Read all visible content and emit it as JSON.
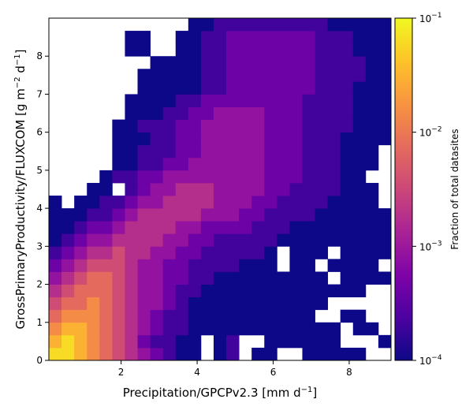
{
  "chart_data": {
    "type": "heatmap",
    "xlabel": "Precipitation/GPCPv2.3 [mm d",
    "xlabel_unit_sup": "−1",
    "xlabel_close": "]",
    "ylabel_main": "GrossPrimaryProductivity/FLUXCOM [g m",
    "ylabel_sup1": "−2",
    "ylabel_mid": " d",
    "ylabel_sup2": "−1",
    "ylabel_close": "]",
    "xlim": [
      0.1,
      9.1
    ],
    "ylim": [
      0,
      9
    ],
    "xticks": [
      "2",
      "4",
      "6",
      "8"
    ],
    "yticks": [
      "0",
      "1",
      "2",
      "3",
      "4",
      "5",
      "6",
      "7",
      "8"
    ],
    "x_bins": 27,
    "y_bins": 27,
    "colormap": "plasma",
    "colorscale": "log",
    "color_range": [
      0.0001,
      0.1
    ],
    "colorbar_label": "Fraction of total datasites",
    "colorbar_ticks": [
      {
        "base": "10",
        "exp": "−1",
        "value": 0.1
      },
      {
        "base": "10",
        "exp": "−2",
        "value": 0.01
      },
      {
        "base": "10",
        "exp": "−3",
        "value": 0.001
      },
      {
        "base": "10",
        "exp": "−4",
        "value": 0.0001
      }
    ],
    "note": "cells: log10 of fraction, rows from y=0 (bottom) upward; null = empty",
    "cells_log10": [
      [
        null,
        null,
        null,
        null,
        null,
        null,
        null,
        null,
        null,
        null,
        null,
        null,
        null,
        null,
        null,
        null,
        null,
        null,
        null,
        null,
        null,
        null,
        null,
        null,
        null,
        null,
        null
      ],
      [
        null,
        null,
        null,
        null,
        null,
        null,
        null,
        null,
        null,
        null,
        null,
        null,
        null,
        null,
        null,
        null,
        null,
        null,
        null,
        null,
        null,
        null,
        null,
        null,
        null,
        null,
        null
      ],
      [
        null,
        null,
        null,
        null,
        null,
        null,
        null,
        null,
        null,
        null,
        null,
        null,
        null,
        null,
        null,
        null,
        null,
        null,
        null,
        null,
        null,
        null,
        null,
        null,
        null,
        null,
        null
      ],
      [
        null,
        null,
        null,
        null,
        null,
        null,
        null,
        null,
        null,
        null,
        null,
        null,
        null,
        null,
        null,
        null,
        null,
        null,
        null,
        null,
        null,
        null,
        null,
        null,
        null,
        null,
        null
      ],
      [
        null,
        null,
        null,
        null,
        null,
        null,
        null,
        null,
        null,
        null,
        null,
        null,
        null,
        null,
        null,
        null,
        null,
        null,
        null,
        null,
        null,
        null,
        null,
        null,
        null,
        null,
        null
      ],
      [
        null,
        null,
        null,
        null,
        null,
        null,
        null,
        null,
        null,
        null,
        null,
        null,
        null,
        null,
        null,
        null,
        null,
        null,
        null,
        null,
        null,
        null,
        null,
        null,
        null,
        null,
        null
      ],
      [
        null,
        null,
        null,
        null,
        null,
        null,
        null,
        null,
        null,
        null,
        null,
        null,
        null,
        null,
        null,
        null,
        null,
        null,
        null,
        null,
        null,
        null,
        null,
        null,
        null,
        null,
        null
      ],
      [
        null,
        null,
        null,
        null,
        null,
        null,
        null,
        null,
        null,
        null,
        null,
        null,
        null,
        null,
        null,
        null,
        null,
        null,
        null,
        null,
        null,
        null,
        null,
        null,
        null,
        null,
        null
      ],
      [
        null,
        null,
        null,
        null,
        null,
        null,
        null,
        null,
        null,
        null,
        null,
        null,
        null,
        null,
        null,
        null,
        null,
        null,
        null,
        null,
        null,
        null,
        null,
        null,
        null,
        null,
        null
      ],
      [
        null,
        null,
        null,
        null,
        null,
        null,
        null,
        null,
        null,
        null,
        null,
        null,
        null,
        null,
        null,
        null,
        null,
        null,
        null,
        null,
        null,
        null,
        null,
        null,
        null,
        null,
        null
      ],
      [
        null,
        null,
        null,
        null,
        null,
        null,
        null,
        null,
        null,
        null,
        null,
        null,
        null,
        null,
        null,
        null,
        null,
        null,
        null,
        null,
        null,
        null,
        null,
        null,
        null,
        null,
        null
      ],
      [
        null,
        null,
        null,
        null,
        null,
        null,
        null,
        null,
        null,
        null,
        null,
        null,
        null,
        null,
        null,
        null,
        null,
        null,
        null,
        null,
        null,
        null,
        null,
        null,
        null,
        null,
        null
      ],
      [
        null,
        null,
        null,
        null,
        null,
        null,
        null,
        null,
        null,
        null,
        null,
        null,
        null,
        null,
        null,
        null,
        null,
        null,
        null,
        null,
        null,
        null,
        null,
        null,
        null,
        null,
        null
      ],
      [
        null,
        null,
        null,
        null,
        null,
        null,
        null,
        null,
        null,
        null,
        null,
        null,
        null,
        null,
        null,
        null,
        null,
        null,
        null,
        null,
        null,
        null,
        null,
        null,
        null,
        null,
        null
      ],
      [
        null,
        null,
        null,
        null,
        null,
        null,
        null,
        null,
        null,
        null,
        null,
        null,
        null,
        null,
        null,
        null,
        null,
        null,
        null,
        null,
        null,
        null,
        null,
        null,
        null,
        null,
        null
      ],
      [
        null,
        null,
        null,
        null,
        null,
        null,
        null,
        null,
        null,
        null,
        null,
        null,
        null,
        null,
        null,
        null,
        null,
        null,
        null,
        null,
        null,
        null,
        null,
        null,
        null,
        null,
        null
      ],
      [
        null,
        null,
        null,
        null,
        null,
        null,
        null,
        null,
        null,
        null,
        null,
        null,
        null,
        null,
        null,
        null,
        null,
        null,
        null,
        null,
        null,
        null,
        null,
        null,
        null,
        null,
        null
      ],
      [
        null,
        null,
        null,
        null,
        null,
        null,
        null,
        null,
        null,
        null,
        null,
        null,
        null,
        null,
        null,
        null,
        null,
        null,
        null,
        null,
        null,
        null,
        null,
        null,
        null,
        null,
        null
      ],
      [
        null,
        null,
        null,
        null,
        null,
        null,
        null,
        null,
        null,
        null,
        null,
        null,
        null,
        null,
        null,
        null,
        null,
        null,
        null,
        null,
        null,
        null,
        null,
        null,
        null,
        null,
        null
      ],
      [
        null,
        null,
        null,
        null,
        null,
        null,
        null,
        null,
        null,
        null,
        null,
        null,
        null,
        null,
        null,
        null,
        null,
        null,
        null,
        null,
        null,
        null,
        null,
        null,
        null,
        null,
        null
      ],
      [
        null,
        null,
        null,
        null,
        null,
        null,
        null,
        null,
        null,
        null,
        null,
        null,
        null,
        null,
        null,
        null,
        null,
        null,
        null,
        null,
        null,
        null,
        null,
        null,
        null,
        null,
        null
      ],
      [
        null,
        null,
        null,
        null,
        null,
        null,
        null,
        null,
        null,
        null,
        null,
        null,
        null,
        null,
        null,
        null,
        null,
        null,
        null,
        null,
        null,
        null,
        null,
        null,
        null,
        null,
        null
      ],
      [
        null,
        null,
        null,
        null,
        null,
        null,
        null,
        null,
        null,
        null,
        null,
        null,
        null,
        null,
        null,
        null,
        null,
        null,
        null,
        null,
        null,
        null,
        null,
        null,
        null,
        null,
        null
      ],
      [
        null,
        null,
        null,
        null,
        null,
        null,
        null,
        null,
        null,
        null,
        null,
        null,
        null,
        null,
        null,
        null,
        null,
        null,
        null,
        null,
        null,
        null,
        null,
        null,
        null,
        null,
        null
      ],
      [
        null,
        null,
        null,
        null,
        null,
        null,
        null,
        null,
        null,
        null,
        null,
        null,
        null,
        null,
        null,
        null,
        null,
        null,
        null,
        null,
        null,
        null,
        null,
        null,
        null,
        null,
        null
      ],
      [
        null,
        null,
        null,
        null,
        null,
        null,
        null,
        null,
        null,
        null,
        null,
        null,
        null,
        null,
        null,
        null,
        null,
        null,
        null,
        null,
        null,
        null,
        null,
        null,
        null,
        null,
        null
      ],
      [
        null,
        null,
        null,
        null,
        null,
        null,
        null,
        null,
        null,
        null,
        null,
        null,
        null,
        null,
        null,
        null,
        null,
        null,
        null,
        null,
        null,
        null,
        null,
        null,
        null,
        null,
        null
      ]
    ],
    "grid_rows": [
      "JJIHGFEDCBAA.AB.AA..AAAAA..",
      "IJIHGFECBBAA.AB..AAAAAA...A",
      "HIIHGFEDCBBAAAAAAAAAAAA.AA.",
      "GHHHGFEDCBBAAAAAAAAAA..AA..",
      "FGGHGFEDDCBAAAAAAAAAAA.....",
      "EFGGGFEDDCBBAAAAAAAAAAAAA..",
      "DEFGGFEDDCCBBAAAAAAAAA.AAAA",
      "CDEFFFEDDCCBBBBAAA.AA.AAAA.",
      "BCDEEFEEDDCCBBBBBA.AAA.AAAA",
      "ABCDDEEEEDDCCBBBBBAAAAAAAAA",
      "AABCCDEEEEDDCCCCBBBAAAAAAAA",
      "AAABBCDEEEEEDDDCCBBBBAAAAAA",
      "A.AABBCDDEEEEDDDCCBBBBAAAA.",
      "...AA.BCDDEEEDDDDCCBBBBAAA.",
      "....ABBCCDDDDDDDDCCCBBBAA..",
      ".....AABBCCDDDDDDCCCBBBAAA.",
      ".....AABBBCCDDDDDCCCBBBAAA.",
      ".....AAABBCCDDDDDCCCBBBAAAA",
      ".....AABBBCCDDDDDCCCBBBBAAA",
      "......AAABBCCDDDDCCCBBBBAAA",
      "......AAAABBCCCCCCCCBBBBAAA",
      ".......AAAAABBCCCCCCCBBBAAA",
      ".......AAAAABBCCCCCCCBBBBAA",
      "........AAAABBCCCCCCCBBBBAA",
      "......AA..AABBCCCCCCCBBBAAA",
      "......AA..AABBCCCCCCCBBBAAA",
      "...........AABBBBBBBBBAAAAA"
    ]
  }
}
